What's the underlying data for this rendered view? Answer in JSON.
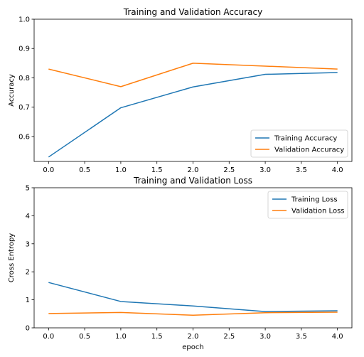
{
  "chart_data": [
    {
      "type": "line",
      "title": "Training and Validation Accuracy",
      "xlabel": "",
      "ylabel": "Accuracy",
      "x": [
        0,
        1,
        2,
        3,
        4
      ],
      "xlim": [
        -0.2,
        4.2
      ],
      "ylim": [
        0.515,
        1.0
      ],
      "xticks": [
        "0.0",
        "0.5",
        "1.0",
        "1.5",
        "2.0",
        "2.5",
        "3.0",
        "3.5",
        "4.0"
      ],
      "yticks": [
        "0.6",
        "0.7",
        "0.8",
        "0.9",
        "1.0"
      ],
      "grid": false,
      "legend": "lower right",
      "series": [
        {
          "name": "Training Accuracy",
          "color": "#1f77b4",
          "values": [
            0.53,
            0.698,
            0.769,
            0.812,
            0.818
          ]
        },
        {
          "name": "Validation Accuracy",
          "color": "#ff7f0e",
          "values": [
            0.83,
            0.77,
            0.85,
            0.84,
            0.83
          ]
        }
      ]
    },
    {
      "type": "line",
      "title": "Training and Validation Loss",
      "xlabel": "epoch",
      "ylabel": "Cross Entropy",
      "x": [
        0,
        1,
        2,
        3,
        4
      ],
      "xlim": [
        -0.2,
        4.2
      ],
      "ylim": [
        0,
        5
      ],
      "xticks": [
        "0.0",
        "0.5",
        "1.0",
        "1.5",
        "2.0",
        "2.5",
        "3.0",
        "3.5",
        "4.0"
      ],
      "yticks": [
        "0",
        "1",
        "2",
        "3",
        "4",
        "5"
      ],
      "grid": false,
      "legend": "upper right",
      "series": [
        {
          "name": "Training Loss",
          "color": "#1f77b4",
          "values": [
            1.62,
            0.94,
            0.78,
            0.58,
            0.61
          ]
        },
        {
          "name": "Validation Loss",
          "color": "#ff7f0e",
          "values": [
            0.51,
            0.55,
            0.45,
            0.54,
            0.56
          ]
        }
      ]
    }
  ]
}
